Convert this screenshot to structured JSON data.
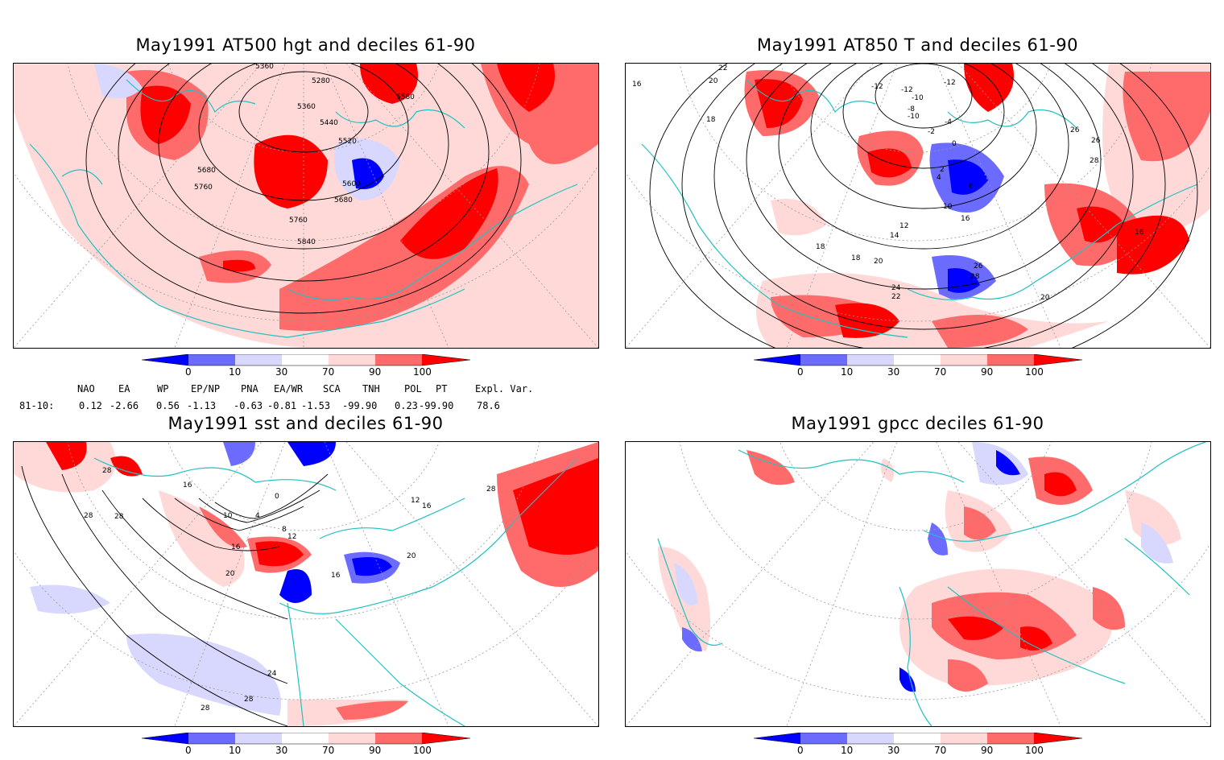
{
  "panels": [
    {
      "id": "hgt500",
      "title": "May1991 AT500 hgt and deciles 61-90",
      "contour_labels": [
        "5360",
        "5280",
        "5580",
        "5360",
        "5440",
        "5520",
        "5680",
        "5760",
        "5600",
        "5680",
        "5760",
        "5840"
      ]
    },
    {
      "id": "t850",
      "title": "May1991 AT850 T and deciles 61-90",
      "contour_labels": [
        "22",
        "20",
        "16",
        "18",
        "-12",
        "-12",
        "-10",
        "-8",
        "-2",
        "-4",
        "0",
        "2",
        "4",
        "6",
        "10",
        "12",
        "14",
        "16",
        "18",
        "20",
        "22",
        "24",
        "26",
        "28",
        "26",
        "26",
        "28",
        "16",
        "18",
        "20",
        "-12",
        "-10"
      ]
    },
    {
      "id": "sst",
      "title": "May1991 sst and deciles 61-90",
      "contour_labels": [
        "28",
        "28",
        "28",
        "16",
        "10",
        "4",
        "0",
        "8",
        "12",
        "16",
        "20",
        "24",
        "28",
        "28",
        "16",
        "20",
        "12",
        "16",
        "28"
      ]
    },
    {
      "id": "gpcc",
      "title": "May1991 gpcc deciles 61-90",
      "contour_labels": []
    }
  ],
  "colorbar": {
    "ticks": [
      "0",
      "10",
      "30",
      "70",
      "90",
      "100"
    ],
    "colors": {
      "dark_blue": "#0000ff",
      "mid_blue": "#6b6bff",
      "light_blue": "#d8d8ff",
      "white": "#ffffff",
      "light_red": "#ffd8d8",
      "mid_red": "#ff6b6b",
      "dark_red": "#ff0000"
    }
  },
  "indices": {
    "header": [
      "NAO",
      "EA",
      "WP",
      "EP/NP",
      "PNA",
      "EA/WR",
      "SCA",
      "TNH",
      "POL",
      "PT",
      "Expl. Var."
    ],
    "row_label": "81-10:",
    "values": [
      "0.12",
      "-2.66",
      "0.56",
      "-1.13",
      "-0.63",
      "-0.81",
      "-1.53",
      "-99.90",
      "0.23",
      "-99.90",
      "78.6"
    ]
  },
  "map_colors": {
    "coast": "#22c0c0",
    "grid": "#9a9a9a",
    "contour": "#000000"
  }
}
